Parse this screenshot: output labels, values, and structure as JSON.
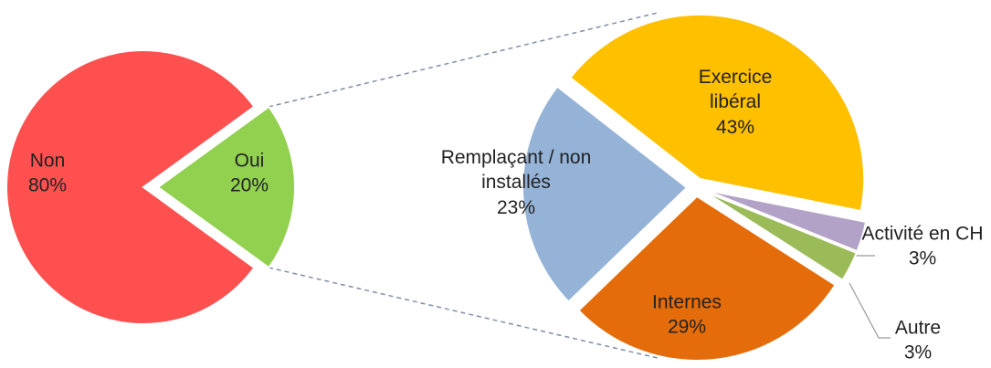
{
  "chart_data": [
    {
      "type": "pie",
      "categories": [
        "Non",
        "Oui"
      ],
      "values": [
        80,
        20
      ],
      "value_labels": [
        "80%",
        "20%"
      ],
      "colors": [
        "#ff5050",
        "#92d050"
      ]
    },
    {
      "type": "pie",
      "categories": [
        "Exercice libéral",
        "Activité en CH",
        "Autre",
        "Internes",
        "Remplaçant / non installés"
      ],
      "values": [
        43,
        3,
        3,
        29,
        23
      ],
      "value_labels": [
        "43%",
        "3%",
        "3%",
        "29%",
        "23%"
      ],
      "colors": [
        "#ffc000",
        "#b3a2c7",
        "#9bbb59",
        "#e46c0a",
        "#95b3d7"
      ]
    }
  ]
}
